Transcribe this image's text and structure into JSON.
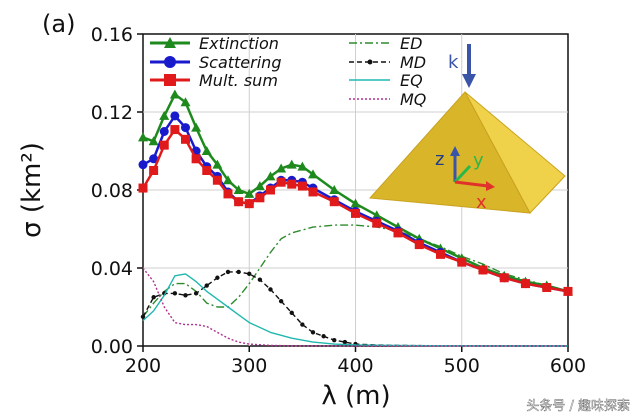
{
  "chart_data": {
    "type": "line",
    "panel_label": "(a)",
    "xlabel": "λ (m)",
    "ylabel": "σ (km²)",
    "xlim": [
      200,
      600
    ],
    "ylim": [
      0,
      0.16
    ],
    "x_ticks": [
      "200",
      "300",
      "400",
      "500",
      "600"
    ],
    "y_ticks": [
      "0.00",
      "0.04",
      "0.08",
      "0.12",
      "0.16"
    ],
    "legend_left": [
      "Extinction",
      "Scattering",
      "Mult. sum"
    ],
    "legend_right": [
      "ED",
      "MD",
      "EQ",
      "MQ"
    ],
    "series": [
      {
        "name": "Extinction",
        "color": "#1e8a1e",
        "marker": "triangle",
        "x": [
          200,
          210,
          220,
          230,
          240,
          250,
          260,
          270,
          280,
          290,
          300,
          310,
          320,
          330,
          340,
          350,
          360,
          380,
          400,
          420,
          440,
          460,
          480,
          500,
          520,
          540,
          560,
          580,
          600
        ],
        "y": [
          0.107,
          0.105,
          0.118,
          0.129,
          0.125,
          0.112,
          0.1,
          0.093,
          0.085,
          0.08,
          0.078,
          0.082,
          0.087,
          0.091,
          0.093,
          0.092,
          0.088,
          0.08,
          0.073,
          0.067,
          0.061,
          0.055,
          0.05,
          0.045,
          0.04,
          0.036,
          0.033,
          0.031,
          0.028
        ]
      },
      {
        "name": "Scattering",
        "color": "#1a1acd",
        "marker": "circle",
        "x": [
          200,
          210,
          220,
          230,
          240,
          250,
          260,
          270,
          280,
          290,
          300,
          310,
          320,
          330,
          340,
          350,
          360,
          380,
          400,
          420,
          440,
          460,
          480,
          500,
          520,
          540,
          560,
          580,
          600
        ],
        "y": [
          0.093,
          0.096,
          0.11,
          0.118,
          0.112,
          0.1,
          0.092,
          0.087,
          0.079,
          0.074,
          0.073,
          0.077,
          0.081,
          0.085,
          0.085,
          0.084,
          0.081,
          0.075,
          0.069,
          0.064,
          0.059,
          0.053,
          0.048,
          0.043,
          0.039,
          0.035,
          0.032,
          0.03,
          0.028
        ]
      },
      {
        "name": "Mult. sum",
        "color": "#e01a1a",
        "marker": "square",
        "x": [
          200,
          210,
          220,
          230,
          240,
          250,
          260,
          270,
          280,
          290,
          300,
          310,
          320,
          330,
          340,
          350,
          360,
          380,
          400,
          420,
          440,
          460,
          480,
          500,
          520,
          540,
          560,
          580,
          600
        ],
        "y": [
          0.081,
          0.09,
          0.103,
          0.111,
          0.106,
          0.096,
          0.09,
          0.085,
          0.078,
          0.074,
          0.073,
          0.076,
          0.08,
          0.084,
          0.083,
          0.082,
          0.079,
          0.074,
          0.068,
          0.063,
          0.058,
          0.052,
          0.047,
          0.043,
          0.039,
          0.035,
          0.032,
          0.03,
          0.028
        ]
      },
      {
        "name": "ED",
        "color": "#2e8b2e",
        "style": "dashdot",
        "x": [
          200,
          210,
          220,
          230,
          240,
          250,
          260,
          270,
          280,
          290,
          300,
          310,
          320,
          330,
          340,
          360,
          380,
          400,
          420,
          440,
          460,
          480,
          500,
          520,
          540,
          560,
          580,
          600
        ],
        "y": [
          0.015,
          0.022,
          0.028,
          0.032,
          0.032,
          0.028,
          0.022,
          0.02,
          0.02,
          0.025,
          0.032,
          0.04,
          0.048,
          0.055,
          0.058,
          0.061,
          0.062,
          0.062,
          0.061,
          0.059,
          0.055,
          0.051,
          0.046,
          0.042,
          0.037,
          0.034,
          0.031,
          0.028
        ]
      },
      {
        "name": "MD",
        "color": "#111111",
        "style": "dashed",
        "marker": "dot",
        "x": [
          200,
          210,
          220,
          230,
          240,
          250,
          260,
          270,
          280,
          290,
          300,
          310,
          320,
          330,
          340,
          350,
          360,
          370,
          380,
          390,
          400,
          420,
          440,
          460,
          480,
          500,
          550,
          600
        ],
        "y": [
          0.015,
          0.025,
          0.027,
          0.027,
          0.026,
          0.027,
          0.031,
          0.035,
          0.038,
          0.038,
          0.037,
          0.034,
          0.029,
          0.023,
          0.017,
          0.011,
          0.007,
          0.005,
          0.003,
          0.002,
          0.001,
          0.0005,
          0.0003,
          0.0002,
          0.0001,
          0.0001,
          0.0,
          0.0
        ]
      },
      {
        "name": "EQ",
        "color": "#20b8b0",
        "style": "solid",
        "x": [
          200,
          210,
          220,
          230,
          240,
          250,
          260,
          270,
          280,
          290,
          300,
          320,
          340,
          360,
          380,
          400,
          450,
          500,
          550,
          600
        ],
        "y": [
          0.013,
          0.018,
          0.026,
          0.036,
          0.037,
          0.033,
          0.028,
          0.024,
          0.02,
          0.016,
          0.012,
          0.007,
          0.004,
          0.002,
          0.001,
          0.0005,
          0.0002,
          0.0001,
          0.0,
          0.0
        ]
      },
      {
        "name": "MQ",
        "color": "#b0308f",
        "style": "dotted",
        "x": [
          200,
          210,
          220,
          230,
          240,
          250,
          260,
          270,
          280,
          290,
          300,
          320,
          340,
          400,
          500,
          600
        ],
        "y": [
          0.04,
          0.033,
          0.02,
          0.012,
          0.011,
          0.011,
          0.01,
          0.007,
          0.004,
          0.002,
          0.001,
          0.0003,
          0.0001,
          0.0,
          0.0,
          0.0
        ]
      }
    ],
    "inset": {
      "description_labels": [
        "k",
        "z",
        "y",
        "x"
      ],
      "colors": {
        "pyramid": "#e8c93a",
        "k_arrow": "#3a55a8",
        "z_axis": "#3a55a8",
        "y_axis": "#29b94a",
        "x_axis": "#e0322a"
      }
    }
  },
  "watermark": "头条号 / 趣味探索"
}
